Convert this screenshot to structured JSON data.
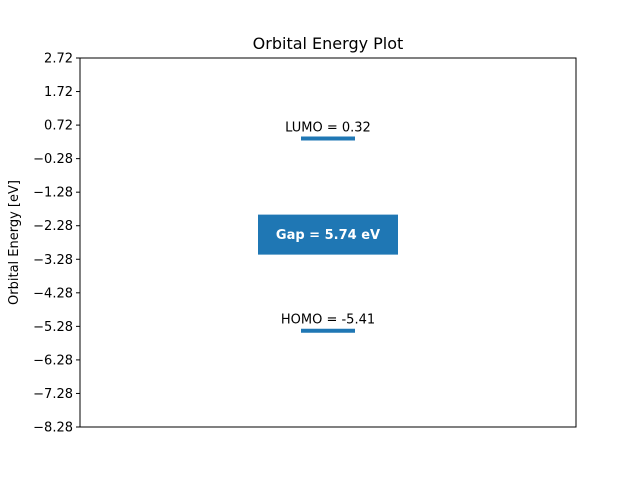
{
  "chart_data": {
    "type": "bar",
    "title": "Orbital Energy Plot",
    "xlabel": "",
    "ylabel": "Orbital Energy [eV]",
    "ylim": [
      -8.28,
      2.72
    ],
    "yticks": [
      2.72,
      1.72,
      0.72,
      -0.28,
      -1.28,
      -2.28,
      -3.28,
      -4.28,
      -5.28,
      -6.28,
      -7.28,
      -8.28
    ],
    "ytick_labels": [
      "2.72",
      "1.72",
      "0.72",
      "−0.28",
      "−1.28",
      "−2.28",
      "−3.28",
      "−4.28",
      "−5.28",
      "−6.28",
      "−7.28",
      "−8.28"
    ],
    "xticks": [],
    "grid": false,
    "levels": [
      {
        "name": "LUMO",
        "value": 0.32,
        "label": "LUMO = 0.32"
      },
      {
        "name": "HOMO",
        "value": -5.41,
        "label": "HOMO = -5.41"
      }
    ],
    "gap": {
      "value": 5.74,
      "label": "Gap = 5.74 eV"
    },
    "color": "#1f77b4"
  }
}
